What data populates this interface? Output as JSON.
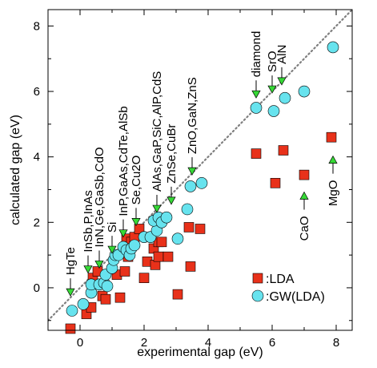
{
  "chart_data": {
    "type": "scatter",
    "title": "",
    "xlabel": "experimental gap (eV)",
    "ylabel": "calculated gap (eV)",
    "xlim": [
      -1,
      8.5
    ],
    "ylim": [
      -1.3,
      8.5
    ],
    "xticks": [
      0,
      2,
      4,
      6,
      8
    ],
    "yticks": [
      0,
      2,
      4,
      6,
      8
    ],
    "xtick_labels": [
      "0",
      "2",
      "4",
      "6",
      "8"
    ],
    "ytick_labels": [
      "0",
      "2",
      "4",
      "6",
      "8"
    ],
    "reference_line": {
      "style": "dotted",
      "from": [
        -1,
        -1
      ],
      "to": [
        8.5,
        8.5
      ],
      "color": "#7f7f7f"
    },
    "legend": {
      "placement": "bottom-right",
      "entries": [
        {
          "label": ":LDA",
          "marker": "square",
          "color": "#e8311a"
        },
        {
          "label": ":GW(LDA)",
          "marker": "circle",
          "color": "#67e3ee"
        }
      ]
    },
    "series": [
      {
        "name": ":LDA",
        "marker": "square",
        "color": "#e8311a",
        "points": [
          [
            -0.3,
            -1.25
          ],
          [
            0.2,
            -0.8
          ],
          [
            0.35,
            -0.6
          ],
          [
            0.7,
            -0.25
          ],
          [
            0.8,
            -0.35
          ],
          [
            0.4,
            0.3
          ],
          [
            0.55,
            0.5
          ],
          [
            1.15,
            0.4
          ],
          [
            1.25,
            -0.3
          ],
          [
            1.4,
            0.5
          ],
          [
            1.45,
            1.5
          ],
          [
            1.5,
            0.95
          ],
          [
            1.6,
            1.4
          ],
          [
            1.7,
            1.55
          ],
          [
            1.85,
            1.8
          ],
          [
            2.0,
            0.3
          ],
          [
            2.1,
            0.8
          ],
          [
            2.3,
            1.2
          ],
          [
            2.35,
            0.7
          ],
          [
            2.45,
            1.4
          ],
          [
            2.45,
            0.95
          ],
          [
            2.55,
            1.4
          ],
          [
            2.75,
            0.95
          ],
          [
            3.05,
            -0.2
          ],
          [
            3.45,
            0.65
          ],
          [
            3.4,
            1.85
          ],
          [
            3.75,
            1.8
          ],
          [
            5.5,
            4.1
          ],
          [
            6.1,
            3.2
          ],
          [
            6.35,
            4.2
          ],
          [
            7.0,
            3.45
          ],
          [
            7.85,
            4.6
          ]
        ]
      },
      {
        "name": ":GW(LDA)",
        "marker": "circle",
        "color": "#67e3ee",
        "points": [
          [
            -0.25,
            -0.7
          ],
          [
            0.1,
            -0.5
          ],
          [
            0.35,
            -0.15
          ],
          [
            0.35,
            0.1
          ],
          [
            0.6,
            0.1
          ],
          [
            0.75,
            0.15
          ],
          [
            0.85,
            0.05
          ],
          [
            0.8,
            0.4
          ],
          [
            1.0,
            0.6
          ],
          [
            1.05,
            0.85
          ],
          [
            1.1,
            1.0
          ],
          [
            1.2,
            1.0
          ],
          [
            1.35,
            1.25
          ],
          [
            1.45,
            1.15
          ],
          [
            1.55,
            1.0
          ],
          [
            1.6,
            1.2
          ],
          [
            1.7,
            1.3
          ],
          [
            2.0,
            1.55
          ],
          [
            2.2,
            1.55
          ],
          [
            2.4,
            1.75
          ],
          [
            2.3,
            2.05
          ],
          [
            2.45,
            2.15
          ],
          [
            2.55,
            2.0
          ],
          [
            2.7,
            2.15
          ],
          [
            3.05,
            1.5
          ],
          [
            3.35,
            2.4
          ],
          [
            3.45,
            3.1
          ],
          [
            3.8,
            3.2
          ],
          [
            5.5,
            5.5
          ],
          [
            6.05,
            5.4
          ],
          [
            6.4,
            5.8
          ],
          [
            7.0,
            6.0
          ],
          [
            7.9,
            7.35
          ]
        ]
      }
    ],
    "annotations": [
      {
        "text": "HgTe",
        "x": -0.3,
        "y": -0.25
      },
      {
        "text": "InSb,P,InAs",
        "x": 0.25,
        "y": 0.45
      },
      {
        "text": "InN,Ge,GaSb,CdO",
        "x": 0.6,
        "y": 0.6
      },
      {
        "text": "Si",
        "x": 1.0,
        "y": 1.05
      },
      {
        "text": "InP,GaAs,CdTe,AlSb",
        "x": 1.35,
        "y": 1.55
      },
      {
        "text": "Se,Cu2O",
        "x": 1.75,
        "y": 1.9
      },
      {
        "text": "AlAs,GaP,SiC,AlP,CdS",
        "x": 2.4,
        "y": 2.3
      },
      {
        "text": "ZnSe,CuBr",
        "x": 2.85,
        "y": 2.55
      },
      {
        "text": "ZnO,GaN,ZnS",
        "x": 3.5,
        "y": 3.45
      },
      {
        "text": "diamond",
        "x": 5.5,
        "y": 5.8
      },
      {
        "text": "SrO",
        "x": 6.0,
        "y": 5.95
      },
      {
        "text": "AlN",
        "x": 6.3,
        "y": 6.2
      },
      {
        "text": "CaO",
        "x": 7.0,
        "y": 3.0
      },
      {
        "text": "MgO",
        "x": 7.9,
        "y": 4.1
      }
    ]
  }
}
